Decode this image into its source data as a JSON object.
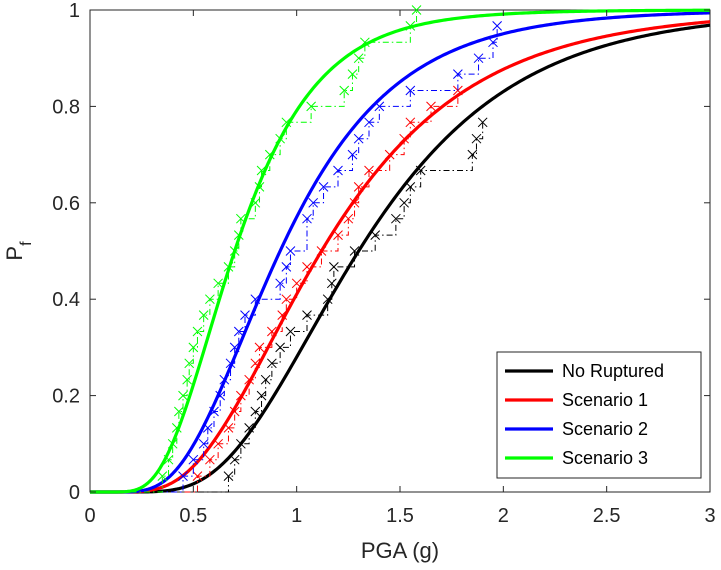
{
  "chart_data": {
    "type": "line",
    "title": "",
    "xlabel": "PGA (g)",
    "ylabel_main": "P",
    "ylabel_sub": "f",
    "xlim": [
      0,
      3
    ],
    "ylim": [
      0,
      1
    ],
    "x_ticks": [
      0,
      0.5,
      1,
      1.5,
      2,
      2.5,
      3
    ],
    "x_tick_labels": [
      "0",
      "0.5",
      "1",
      "1.5",
      "2",
      "2.5",
      "3"
    ],
    "y_ticks": [
      0,
      0.2,
      0.4,
      0.6,
      0.8,
      1
    ],
    "y_tick_labels": [
      "0",
      "0.2",
      "0.4",
      "0.6",
      "0.8",
      "1"
    ],
    "grid": false,
    "legend_position": "bottom-right",
    "series": [
      {
        "name": "No Ruptured",
        "color": "#000000",
        "fit": "lognormal",
        "median": 1.3,
        "beta": 0.45,
        "empirical": [
          [
            0.67,
            0.033
          ],
          [
            0.7,
            0.067
          ],
          [
            0.73,
            0.1
          ],
          [
            0.77,
            0.133
          ],
          [
            0.8,
            0.167
          ],
          [
            0.83,
            0.2
          ],
          [
            0.85,
            0.233
          ],
          [
            0.88,
            0.267
          ],
          [
            0.92,
            0.3
          ],
          [
            0.97,
            0.333
          ],
          [
            1.05,
            0.367
          ],
          [
            1.15,
            0.4
          ],
          [
            1.17,
            0.433
          ],
          [
            1.18,
            0.467
          ],
          [
            1.28,
            0.5
          ],
          [
            1.38,
            0.533
          ],
          [
            1.48,
            0.567
          ],
          [
            1.52,
            0.6
          ],
          [
            1.55,
            0.633
          ],
          [
            1.6,
            0.667
          ],
          [
            1.85,
            0.7
          ],
          [
            1.87,
            0.733
          ],
          [
            1.9,
            0.767
          ]
        ]
      },
      {
        "name": "Scenario 1",
        "color": "#ff0000",
        "fit": "lognormal",
        "median": 1.12,
        "beta": 0.5,
        "empirical": [
          [
            0.52,
            0.033
          ],
          [
            0.58,
            0.067
          ],
          [
            0.62,
            0.1
          ],
          [
            0.67,
            0.133
          ],
          [
            0.7,
            0.167
          ],
          [
            0.73,
            0.2
          ],
          [
            0.77,
            0.233
          ],
          [
            0.8,
            0.267
          ],
          [
            0.82,
            0.3
          ],
          [
            0.88,
            0.333
          ],
          [
            0.93,
            0.367
          ],
          [
            0.95,
            0.4
          ],
          [
            1.0,
            0.433
          ],
          [
            1.05,
            0.467
          ],
          [
            1.12,
            0.5
          ],
          [
            1.2,
            0.533
          ],
          [
            1.25,
            0.567
          ],
          [
            1.28,
            0.6
          ],
          [
            1.3,
            0.633
          ],
          [
            1.35,
            0.667
          ],
          [
            1.45,
            0.7
          ],
          [
            1.52,
            0.733
          ],
          [
            1.55,
            0.767
          ],
          [
            1.65,
            0.8
          ],
          [
            1.78,
            0.833
          ]
        ]
      },
      {
        "name": "Scenario 2",
        "color": "#0000ff",
        "fit": "lognormal",
        "median": 0.92,
        "beta": 0.47,
        "empirical": [
          [
            0.45,
            0.033
          ],
          [
            0.5,
            0.067
          ],
          [
            0.55,
            0.1
          ],
          [
            0.57,
            0.133
          ],
          [
            0.6,
            0.167
          ],
          [
            0.63,
            0.2
          ],
          [
            0.65,
            0.233
          ],
          [
            0.68,
            0.267
          ],
          [
            0.7,
            0.3
          ],
          [
            0.72,
            0.333
          ],
          [
            0.75,
            0.367
          ],
          [
            0.8,
            0.4
          ],
          [
            0.92,
            0.433
          ],
          [
            0.95,
            0.467
          ],
          [
            0.97,
            0.5
          ],
          [
            1.05,
            0.567
          ],
          [
            1.08,
            0.6
          ],
          [
            1.13,
            0.633
          ],
          [
            1.2,
            0.667
          ],
          [
            1.27,
            0.7
          ],
          [
            1.3,
            0.733
          ],
          [
            1.35,
            0.767
          ],
          [
            1.4,
            0.8
          ],
          [
            1.55,
            0.833
          ],
          [
            1.78,
            0.867
          ],
          [
            1.88,
            0.9
          ],
          [
            1.95,
            0.933
          ],
          [
            1.97,
            0.967
          ]
        ]
      },
      {
        "name": "Scenario 3",
        "color": "#00ff00",
        "fit": "lognormal",
        "median": 0.7,
        "beta": 0.44,
        "empirical": [
          [
            0.35,
            0.033
          ],
          [
            0.38,
            0.067
          ],
          [
            0.4,
            0.1
          ],
          [
            0.42,
            0.133
          ],
          [
            0.43,
            0.167
          ],
          [
            0.45,
            0.2
          ],
          [
            0.47,
            0.233
          ],
          [
            0.48,
            0.267
          ],
          [
            0.5,
            0.3
          ],
          [
            0.52,
            0.333
          ],
          [
            0.55,
            0.367
          ],
          [
            0.58,
            0.4
          ],
          [
            0.62,
            0.433
          ],
          [
            0.67,
            0.467
          ],
          [
            0.7,
            0.5
          ],
          [
            0.72,
            0.533
          ],
          [
            0.73,
            0.567
          ],
          [
            0.8,
            0.6
          ],
          [
            0.82,
            0.633
          ],
          [
            0.83,
            0.667
          ],
          [
            0.87,
            0.7
          ],
          [
            0.92,
            0.733
          ],
          [
            0.95,
            0.767
          ],
          [
            1.07,
            0.8
          ],
          [
            1.23,
            0.833
          ],
          [
            1.27,
            0.867
          ],
          [
            1.3,
            0.9
          ],
          [
            1.33,
            0.933
          ],
          [
            1.55,
            0.967
          ],
          [
            1.58,
            1.0
          ]
        ]
      }
    ]
  }
}
